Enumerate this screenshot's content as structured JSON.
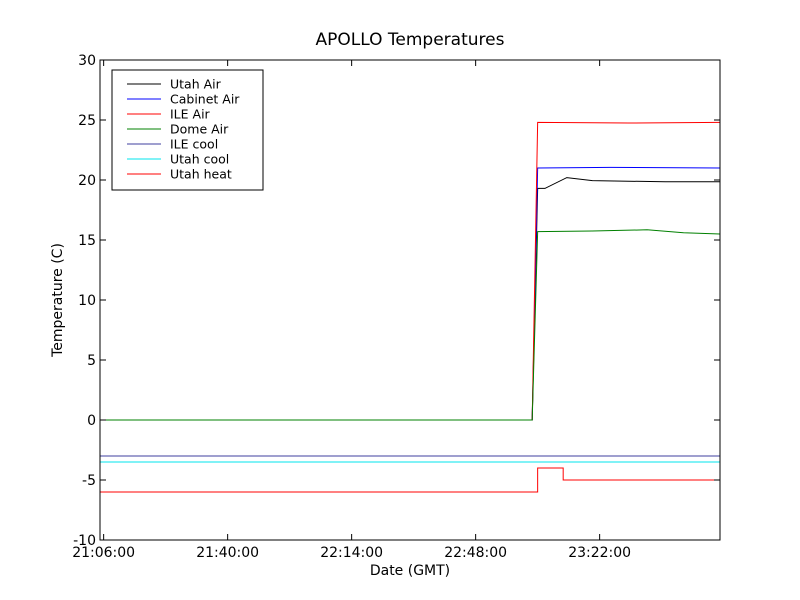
{
  "chart_data": {
    "type": "line",
    "title": "APOLLO Temperatures",
    "xlabel": "Date (GMT)",
    "ylabel": "Temperature (C)",
    "xlim": [
      "21:05:00",
      "23:55:00"
    ],
    "ylim": [
      -10,
      30
    ],
    "xticks": [
      "21:06:00",
      "21:40:00",
      "22:14:00",
      "22:48:00",
      "23:22:00"
    ],
    "yticks": [
      30,
      25,
      20,
      15,
      10,
      5,
      0,
      -5,
      -10
    ],
    "yticklabels": [
      "30",
      "25",
      "20",
      "15",
      "10",
      "5",
      "0",
      "-5",
      "-10"
    ],
    "legend_position": "top-left",
    "grid": false,
    "series": [
      {
        "name": "Utah Air",
        "color": "#000000",
        "points": [
          [
            "21:05:00",
            0
          ],
          [
            "23:03:30",
            0
          ],
          [
            "23:05:00",
            19.3
          ],
          [
            "23:07:00",
            19.3
          ],
          [
            "23:13:00",
            20.2
          ],
          [
            "23:20:00",
            19.95
          ],
          [
            "23:40:00",
            19.85
          ],
          [
            "23:55:00",
            19.85
          ]
        ]
      },
      {
        "name": "Cabinet Air",
        "color": "#0000ff",
        "points": [
          [
            "21:05:00",
            0
          ],
          [
            "23:03:30",
            0
          ],
          [
            "23:05:00",
            21.0
          ],
          [
            "23:25:00",
            21.05
          ],
          [
            "23:55:00",
            21.0
          ]
        ]
      },
      {
        "name": "ILE Air",
        "color": "#ff0000",
        "points": [
          [
            "21:05:00",
            0
          ],
          [
            "23:03:30",
            0
          ],
          [
            "23:05:00",
            24.8
          ],
          [
            "23:30:00",
            24.75
          ],
          [
            "23:55:00",
            24.8
          ]
        ]
      },
      {
        "name": "Dome Air",
        "color": "#008000",
        "points": [
          [
            "21:05:00",
            0
          ],
          [
            "23:03:30",
            0
          ],
          [
            "23:05:00",
            15.7
          ],
          [
            "23:20:00",
            15.75
          ],
          [
            "23:35:00",
            15.85
          ],
          [
            "23:45:00",
            15.6
          ],
          [
            "23:55:00",
            15.5
          ]
        ]
      },
      {
        "name": "ILE cool",
        "color": "#3f3f9f",
        "points": [
          [
            "21:05:00",
            -3.0
          ],
          [
            "23:55:00",
            -3.0
          ]
        ]
      },
      {
        "name": "Utah cool",
        "color": "#00e5ee",
        "points": [
          [
            "21:05:00",
            -3.5
          ],
          [
            "23:55:00",
            -3.5
          ]
        ]
      },
      {
        "name": "Utah heat",
        "color": "#ff0000",
        "points": [
          [
            "21:05:00",
            -6.0
          ],
          [
            "23:05:00",
            -6.0
          ],
          [
            "23:05:00",
            -4.0
          ],
          [
            "23:12:00",
            -4.0
          ],
          [
            "23:12:00",
            -5.0
          ],
          [
            "23:55:00",
            -5.0
          ]
        ]
      }
    ]
  }
}
